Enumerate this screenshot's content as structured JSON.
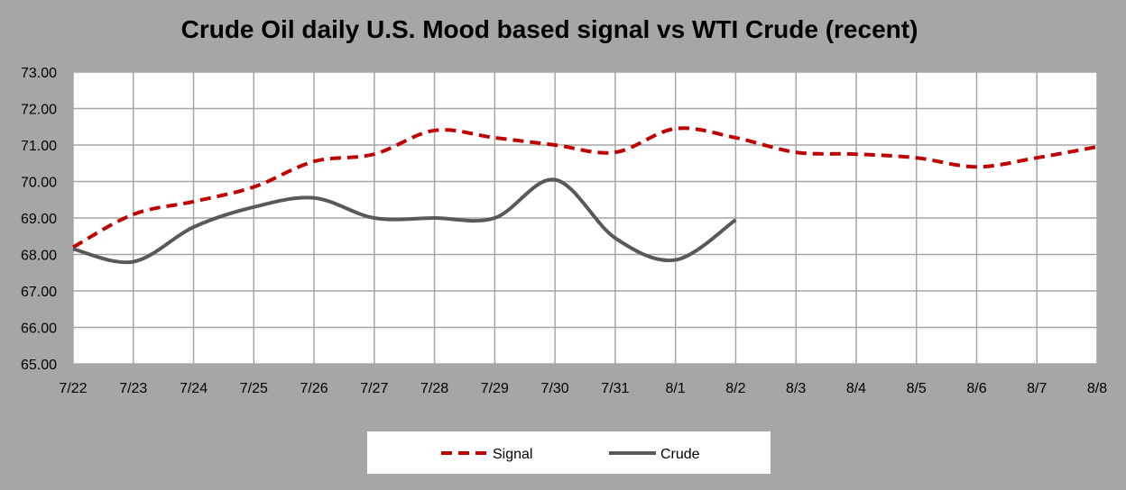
{
  "chart_data": {
    "type": "line",
    "title": "Crude Oil daily U.S. Mood based signal vs WTI Crude (recent)",
    "xlabel": "",
    "ylabel": "",
    "categories": [
      "7/22",
      "7/23",
      "7/24",
      "7/25",
      "7/26",
      "7/27",
      "7/28",
      "7/29",
      "7/30",
      "7/31",
      "8/1",
      "8/2",
      "8/3",
      "8/4",
      "8/5",
      "8/6",
      "8/7",
      "8/8"
    ],
    "y_ticks": [
      "65.00",
      "66.00",
      "67.00",
      "68.00",
      "69.00",
      "70.00",
      "71.00",
      "72.00",
      "73.00"
    ],
    "ylim": [
      65,
      73
    ],
    "grid": true,
    "legend_position": "bottom",
    "series": [
      {
        "name": "Signal",
        "color": "#c00000",
        "style": "dashed",
        "values": [
          68.2,
          69.1,
          69.45,
          69.85,
          70.55,
          70.75,
          71.4,
          71.2,
          71.0,
          70.8,
          71.45,
          71.2,
          70.8,
          70.75,
          70.65,
          70.4,
          70.65,
          70.95
        ]
      },
      {
        "name": "Crude",
        "color": "#595959",
        "style": "solid",
        "values": [
          68.15,
          67.8,
          68.75,
          69.3,
          69.55,
          69.0,
          69.0,
          69.0,
          70.05,
          68.45,
          67.85,
          68.95,
          null,
          null,
          null,
          null,
          null,
          null
        ]
      }
    ]
  }
}
